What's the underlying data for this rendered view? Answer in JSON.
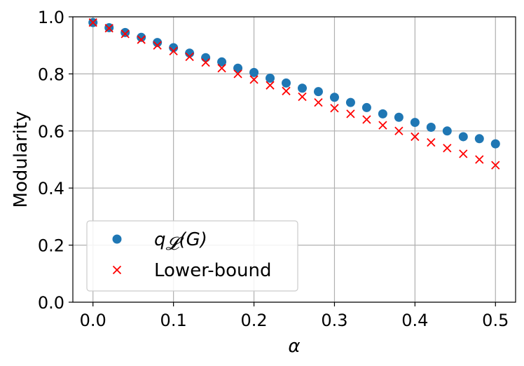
{
  "chart_data": {
    "type": "scatter",
    "title": "",
    "xlabel": "α",
    "ylabel": "Modularity",
    "xlim": [
      -0.025,
      0.525
    ],
    "ylim": [
      0.0,
      1.0
    ],
    "xticks": [
      0.0,
      0.1,
      0.2,
      0.3,
      0.4,
      0.5
    ],
    "xtick_labels": [
      "0.0",
      "0.1",
      "0.2",
      "0.3",
      "0.4",
      "0.5"
    ],
    "yticks": [
      0.0,
      0.2,
      0.4,
      0.6,
      0.8,
      1.0
    ],
    "ytick_labels": [
      "0.0",
      "0.2",
      "0.4",
      "0.6",
      "0.8",
      "1.0"
    ],
    "grid": true,
    "legend_position": "lower-left",
    "series": [
      {
        "name": "q_𝓛(G)",
        "legend_main": "q",
        "legend_sub": "𝓛",
        "legend_rest": "(G)",
        "marker": "circle",
        "color": "#1f77b4",
        "x": [
          0.0,
          0.02,
          0.04,
          0.06,
          0.08,
          0.1,
          0.12,
          0.14,
          0.16,
          0.18,
          0.2,
          0.22,
          0.24,
          0.26,
          0.28,
          0.3,
          0.32,
          0.34,
          0.36,
          0.38,
          0.4,
          0.42,
          0.44,
          0.46,
          0.48,
          0.5
        ],
        "values": [
          0.98,
          0.962,
          0.945,
          0.928,
          0.91,
          0.892,
          0.873,
          0.857,
          0.842,
          0.82,
          0.805,
          0.785,
          0.768,
          0.75,
          0.738,
          0.718,
          0.7,
          0.682,
          0.66,
          0.648,
          0.63,
          0.613,
          0.6,
          0.58,
          0.573,
          0.555
        ]
      },
      {
        "name": "Lower-bound",
        "marker": "x",
        "color": "#ff0000",
        "x": [
          0.0,
          0.02,
          0.04,
          0.06,
          0.08,
          0.1,
          0.12,
          0.14,
          0.16,
          0.18,
          0.2,
          0.22,
          0.24,
          0.26,
          0.28,
          0.3,
          0.32,
          0.34,
          0.36,
          0.38,
          0.4,
          0.42,
          0.44,
          0.46,
          0.48,
          0.5
        ],
        "values": [
          0.98,
          0.96,
          0.94,
          0.92,
          0.9,
          0.88,
          0.86,
          0.84,
          0.82,
          0.8,
          0.78,
          0.76,
          0.74,
          0.72,
          0.7,
          0.68,
          0.66,
          0.64,
          0.62,
          0.6,
          0.58,
          0.56,
          0.54,
          0.52,
          0.5,
          0.48
        ]
      }
    ]
  }
}
